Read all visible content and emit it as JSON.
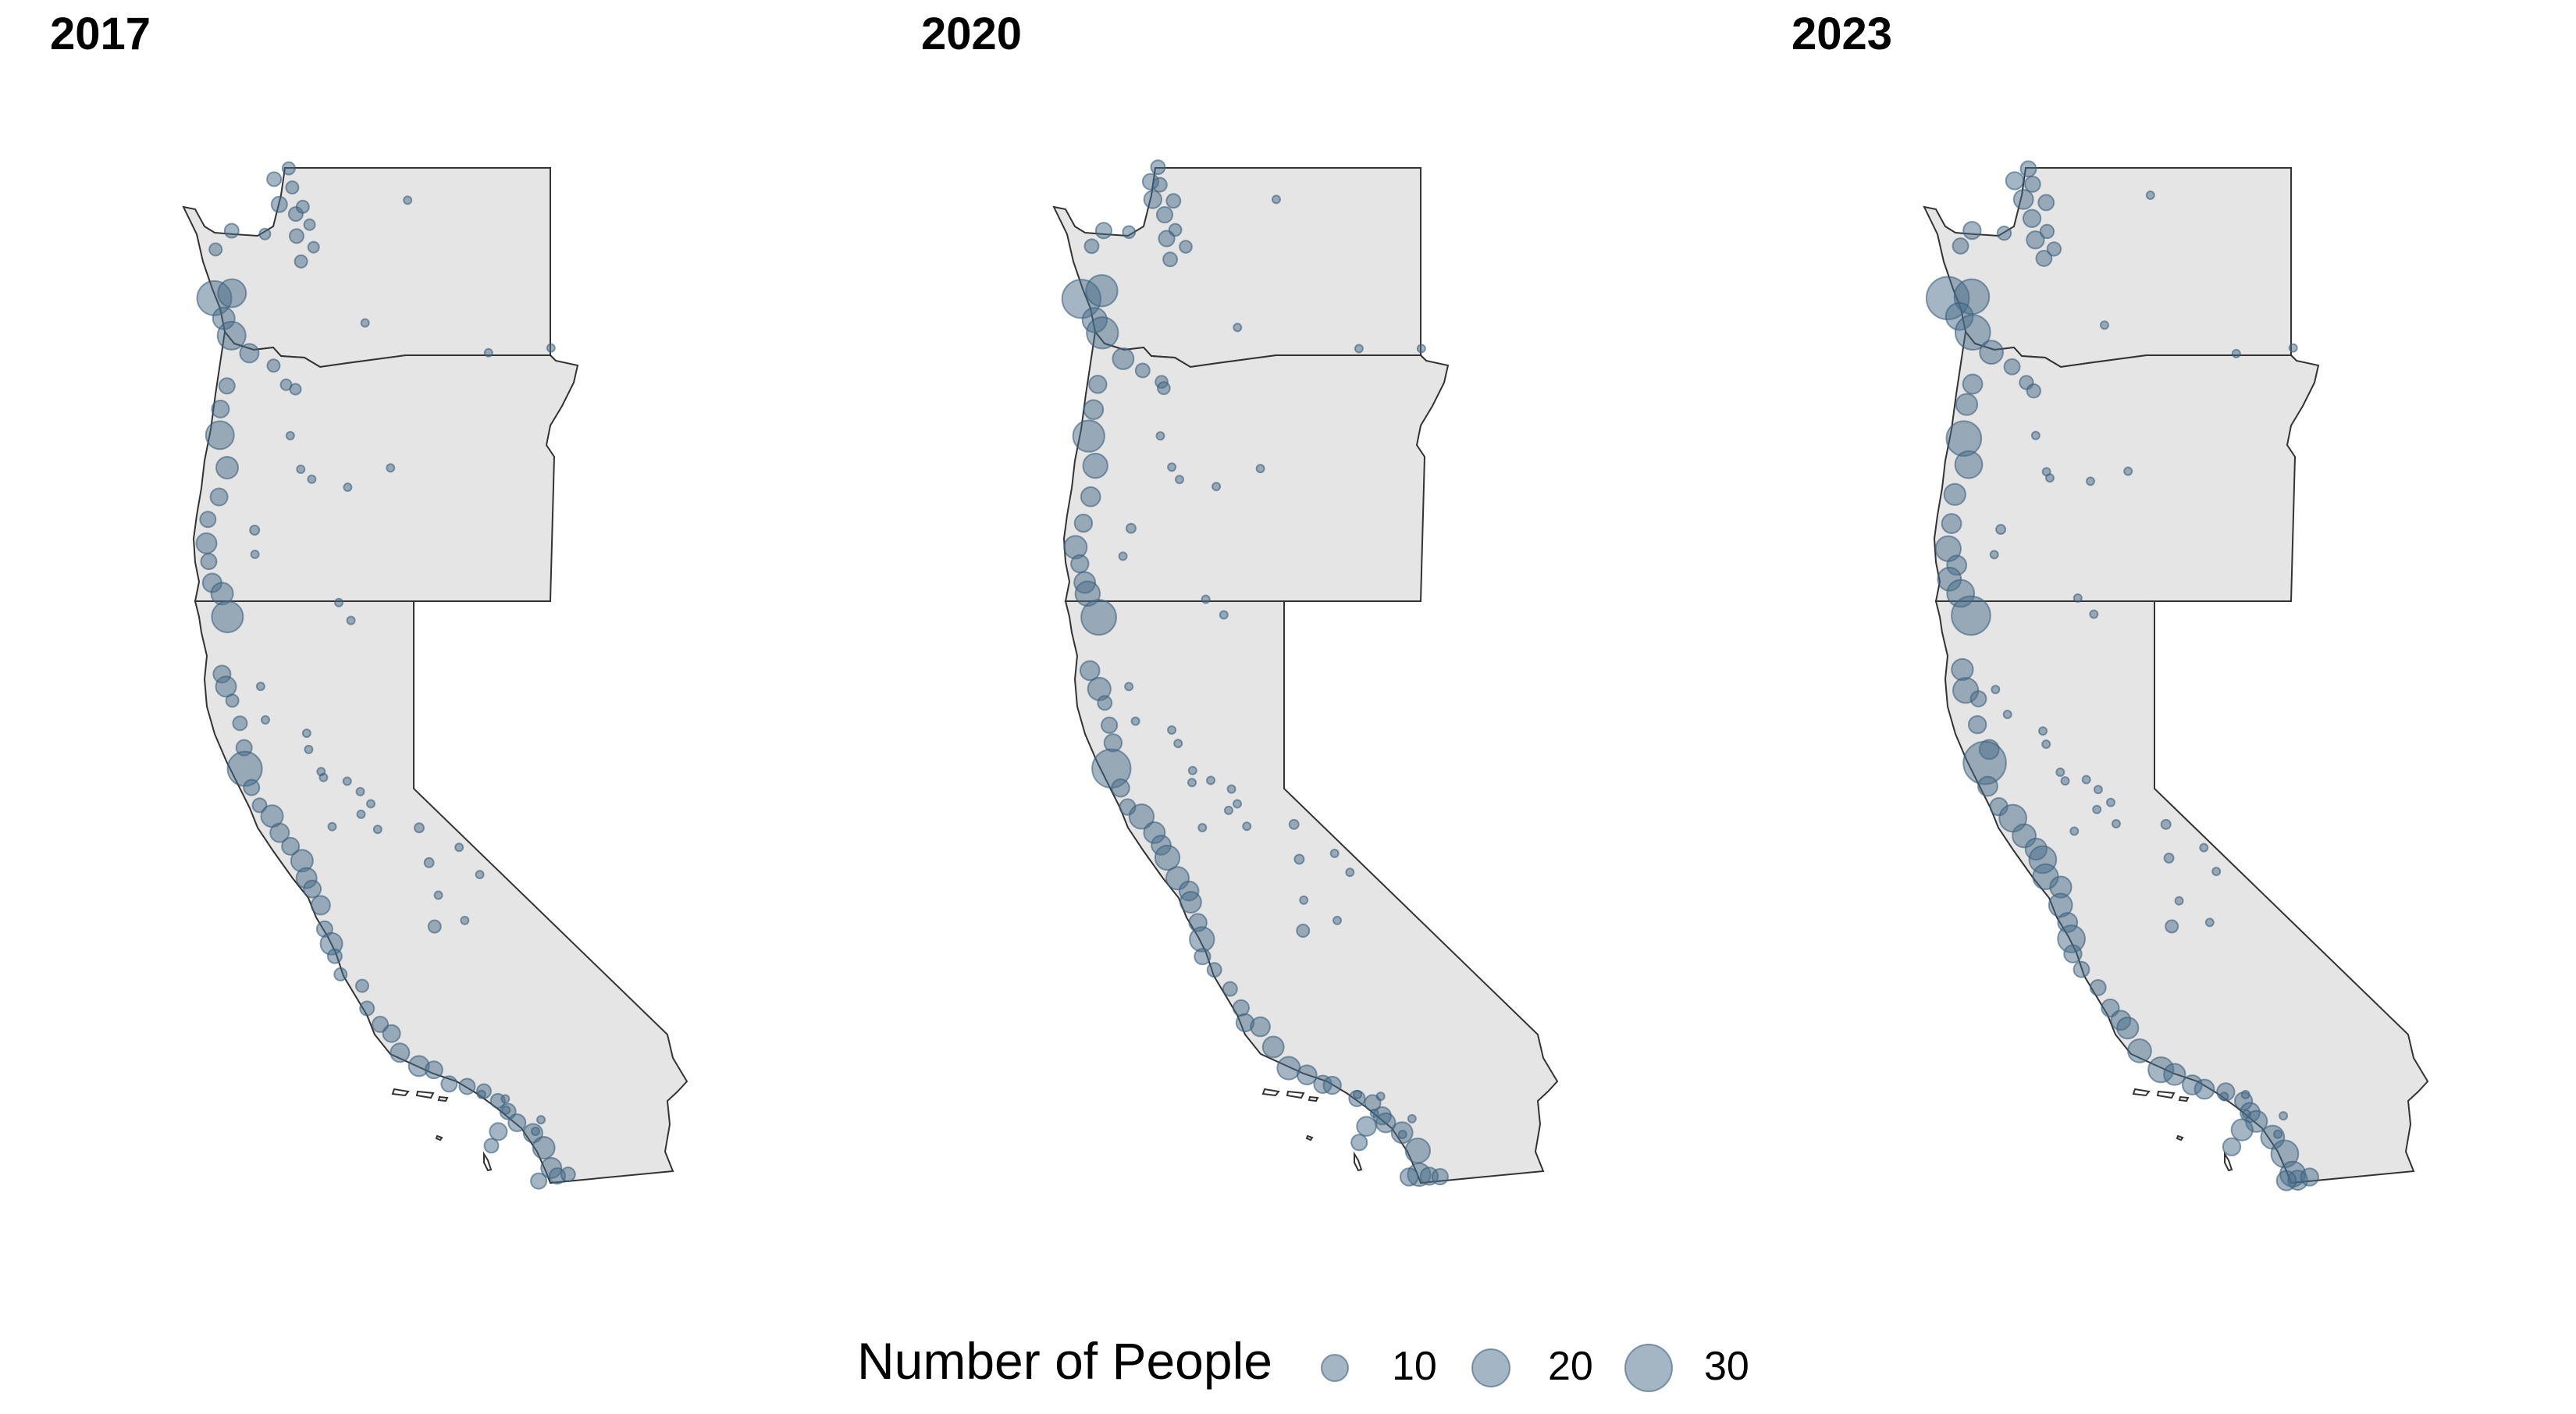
{
  "panels": [
    {
      "title": "2017",
      "level": 0
    },
    {
      "title": "2020",
      "level": 1
    },
    {
      "title": "2023",
      "level": 2
    }
  ],
  "legend": {
    "title": "Number of People",
    "entries": [
      {
        "label": "10",
        "value": 10
      },
      {
        "label": "20",
        "value": 20
      },
      {
        "label": "30",
        "value": 30
      }
    ]
  },
  "colors": {
    "land": "#e5e5e5",
    "border": "#333333",
    "point_fill": "#4a6e8a",
    "point_stroke": "#3b5f7c"
  }
}
